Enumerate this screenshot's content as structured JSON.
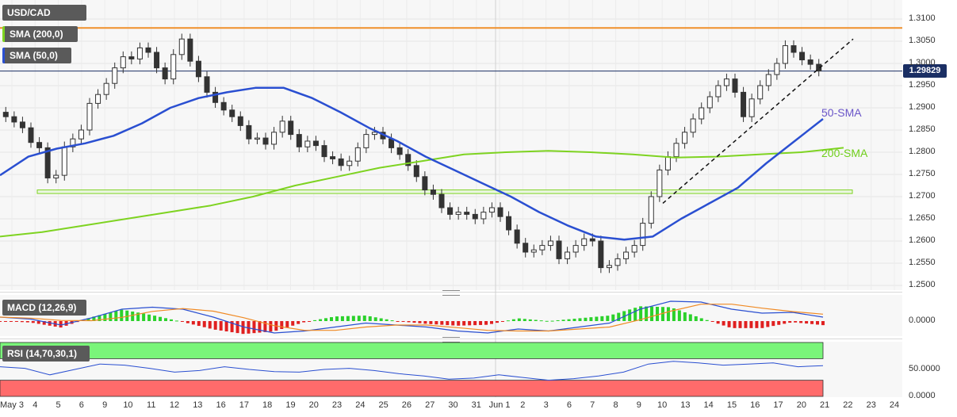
{
  "chart_data": {
    "type": "candlestick",
    "symbol": "USD/CAD",
    "indicators": {
      "sma200_label": "SMA (200,0)",
      "sma50_label": "SMA (50,0)",
      "macd_label": "MACD (12,26,9)",
      "rsi_label": "RSI (14,70,30,1)"
    },
    "annotations": {
      "sma50_text": "50-SMA",
      "sma200_text": "200-SMA"
    },
    "current_price": "1.29829",
    "resistance_level": 1.308,
    "support_zone": [
      1.2707,
      1.2715
    ],
    "trendline": {
      "from_date": "Jun 10",
      "from_price": 1.2685,
      "to_date": "Jun 21",
      "to_price": 1.3055
    },
    "price_axis": [
      "1.3100",
      "1.3050",
      "1.3000",
      "1.2950",
      "1.2900",
      "1.2850",
      "1.2800",
      "1.2750",
      "1.2700",
      "1.2650",
      "1.2600",
      "1.2550",
      "1.2500"
    ],
    "price_range": [
      1.2485,
      1.312
    ],
    "macd_axis": [
      "0.0000"
    ],
    "rsi_axis": [
      "50.0000",
      "0.0000"
    ],
    "rsi_levels": {
      "overbought": 70,
      "oversold": 30
    },
    "x_labels": [
      "May 3",
      "4",
      "5",
      "6",
      "9",
      "10",
      "11",
      "12",
      "13",
      "16",
      "17",
      "18",
      "19",
      "20",
      "23",
      "24",
      "25",
      "26",
      "27",
      "30",
      "31",
      "Jun 1",
      "2",
      "3",
      "6",
      "7",
      "8",
      "9",
      "10",
      "13",
      "14",
      "15",
      "16",
      "17",
      "20",
      "21",
      "22",
      "23",
      "24"
    ],
    "closes": [
      1.288,
      1.2868,
      1.2855,
      1.2822,
      1.281,
      1.2742,
      1.2748,
      1.2812,
      1.283,
      1.285,
      1.291,
      1.293,
      1.2955,
      1.299,
      1.3015,
      1.301,
      1.3035,
      1.3025,
      1.299,
      1.2965,
      1.302,
      1.3055,
      1.3005,
      1.297,
      1.2935,
      1.2912,
      1.2895,
      1.288,
      1.286,
      1.283,
      1.2832,
      1.2818,
      1.2845,
      1.287,
      1.284,
      1.2812,
      1.2825,
      1.2815,
      1.279,
      1.2785,
      1.277,
      1.278,
      1.281,
      1.284,
      1.2845,
      1.283,
      1.281,
      1.2795,
      1.277,
      1.2745,
      1.2715,
      1.2705,
      1.2675,
      1.266,
      1.2665,
      1.266,
      1.265,
      1.2665,
      1.2675,
      1.2655,
      1.2625,
      1.2595,
      1.2575,
      1.258,
      1.259,
      1.26,
      1.256,
      1.2575,
      1.259,
      1.2605,
      1.26,
      1.254,
      1.2545,
      1.256,
      1.2575,
      1.259,
      1.264,
      1.27,
      1.276,
      1.279,
      1.282,
      1.2845,
      1.2875,
      1.29,
      1.2925,
      1.295,
      1.2965,
      1.2935,
      1.288,
      1.292,
      1.295,
      1.2975,
      1.3,
      1.304,
      1.3025,
      1.3008,
      1.2998,
      1.2983
    ],
    "sma50": [
      1.2748,
      1.279,
      1.2808,
      1.282,
      1.2837,
      1.2865,
      1.29,
      1.2922,
      1.2935,
      1.2945,
      1.2945,
      1.2922,
      1.289,
      1.2855,
      1.2825,
      1.279,
      1.276,
      1.273,
      1.27,
      1.2665,
      1.2635,
      1.261,
      1.2603,
      1.261,
      1.265,
      1.2685,
      1.272,
      1.2775,
      1.2825,
      1.2875
    ],
    "sma200": [
      1.261,
      1.262,
      1.2635,
      1.265,
      1.2665,
      1.268,
      1.27,
      1.2725,
      1.2745,
      1.2765,
      1.278,
      1.2795,
      1.28,
      1.2803,
      1.28,
      1.2795,
      1.2788,
      1.279,
      1.2795,
      1.28,
      1.281
    ],
    "macd_line": [
      0.001,
      0.0005,
      -0.001,
      0.0008,
      0.003,
      0.0035,
      0.003,
      0.001,
      -0.0015,
      -0.003,
      -0.0025,
      -0.0015,
      -0.0005,
      -0.001,
      -0.0015,
      -0.0025,
      -0.003,
      -0.002,
      -0.0025,
      -0.0015,
      -0.0005,
      0.003,
      0.005,
      0.0048,
      0.003,
      0.002,
      0.0022,
      0.001
    ],
    "rsi": [
      55,
      52,
      40,
      50,
      60,
      58,
      52,
      45,
      48,
      55,
      50,
      46,
      45,
      50,
      52,
      48,
      42,
      38,
      32,
      34,
      40,
      35,
      30,
      33,
      38,
      45,
      60,
      65,
      62,
      58,
      60,
      62,
      55,
      57
    ]
  }
}
